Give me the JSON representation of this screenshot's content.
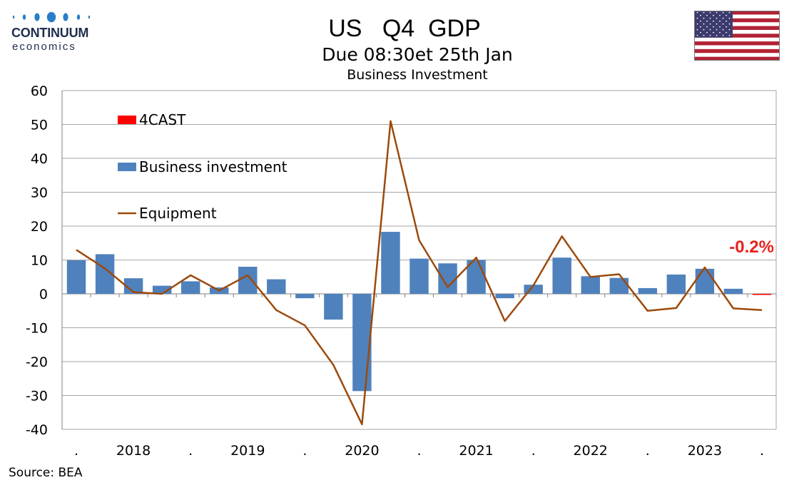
{
  "header": {
    "logo_name": "CONTINUUM",
    "logo_sub": "economics",
    "title": "US   Q4  GDP",
    "subtitle": "Due 08:30et 25th Jan",
    "chart_title": "Business Investment"
  },
  "footer": {
    "source": "Source: BEA"
  },
  "colors": {
    "bars": "#4f81bd",
    "line": "#9c4a0c",
    "forecast": "#ff0000",
    "forecast_label": "#e8221c",
    "grid": "#a6a6a6"
  },
  "icons": {
    "logo": "continuum-logo-dots",
    "flag": "us-flag-icon"
  },
  "chart_data": {
    "type": "bar",
    "categories": [
      "2017Q4",
      "2018Q1",
      "2018Q2",
      "2018Q3",
      "2018Q4",
      "2019Q1",
      "2019Q2",
      "2019Q3",
      "2019Q4",
      "2020Q1",
      "2020Q2",
      "2020Q3",
      "2020Q4",
      "2021Q1",
      "2021Q2",
      "2021Q3",
      "2021Q4",
      "2022Q1",
      "2022Q2",
      "2022Q3",
      "2022Q4",
      "2023Q1",
      "2023Q2",
      "2023Q3",
      "2023Q4"
    ],
    "x_tick_labels": [
      ".",
      "2018",
      ".",
      "2019",
      ".",
      "2020",
      ".",
      "2021",
      ".",
      "2022",
      ".",
      "2023",
      "."
    ],
    "ylim": [
      -40,
      60
    ],
    "y_ticks": [
      60,
      50,
      40,
      30,
      20,
      10,
      0,
      -10,
      -20,
      -30,
      -40
    ],
    "grid": true,
    "legend_position": "top-left",
    "series": [
      {
        "name": "4CAST",
        "type": "bar",
        "values": [
          null,
          null,
          null,
          null,
          null,
          null,
          null,
          null,
          null,
          null,
          null,
          null,
          null,
          null,
          null,
          null,
          null,
          null,
          null,
          null,
          null,
          null,
          null,
          null,
          -0.2
        ]
      },
      {
        "name": "Business investment",
        "type": "bar",
        "values": [
          9.9,
          11.7,
          4.6,
          2.4,
          3.7,
          1.9,
          8.0,
          4.3,
          -1.3,
          -7.6,
          -28.7,
          18.3,
          10.4,
          9.0,
          10.0,
          -1.3,
          2.7,
          10.7,
          5.2,
          4.7,
          1.7,
          5.7,
          7.4,
          1.5,
          -0.2
        ]
      },
      {
        "name": "Equipment",
        "type": "line",
        "values": [
          13.0,
          7.5,
          0.5,
          0,
          5.5,
          1.0,
          5.5,
          -4.8,
          -9.3,
          -21.0,
          -38.5,
          51.0,
          15.8,
          2.0,
          10.7,
          -8.0,
          2.5,
          17.0,
          5.0,
          5.8,
          -5.0,
          -4.2,
          7.8,
          -4.3,
          -4.8
        ]
      }
    ],
    "annotation": "-0.2%"
  }
}
